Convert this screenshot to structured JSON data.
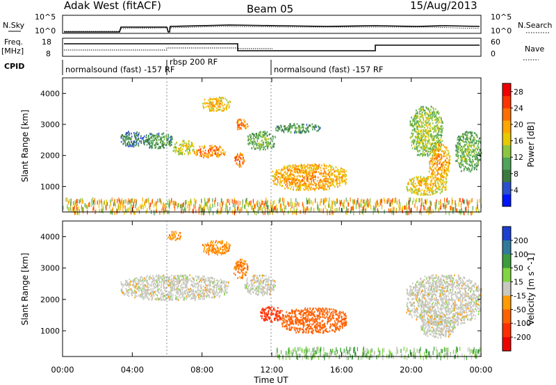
{
  "header": {
    "station": "Adak West (fitACF)",
    "beam": "Beam 05",
    "date": "15/Aug/2013"
  },
  "panels": {
    "nsky_label": "N.Sky",
    "nsearch_label": "N.Search",
    "freq_label": "Freq.",
    "freq_unit": "[MHz]",
    "nave_label": "Nave",
    "cpid_label": "CPID",
    "nsky_ticks": [
      "10^5",
      "10^0"
    ],
    "nsearch_ticks": [
      "10^5",
      "10^0"
    ],
    "freq_ticks": [
      "18",
      "8"
    ],
    "nave_ticks": [
      "60",
      "0"
    ],
    "cpid_segments": [
      {
        "start": 0,
        "end": 6,
        "label": "normalsound (fast) -157 RF"
      },
      {
        "start": 6,
        "end": 12,
        "label": "rbsp 200 RF"
      },
      {
        "start": 12,
        "end": 24,
        "label": "normalsound (fast) -157 RF"
      }
    ]
  },
  "chart_data": [
    {
      "type": "heatmap",
      "name": "Power",
      "ylabel": "Slant Range [km]",
      "xlim": [
        0,
        24
      ],
      "ylim": [
        180,
        4500
      ],
      "yticks": [
        "1000",
        "2000",
        "3000",
        "4000"
      ],
      "colorbar": {
        "label": "Power [dB]",
        "tick_values": [
          4,
          8,
          12,
          16,
          20,
          24,
          28
        ],
        "ticks": [
          "4",
          "8",
          "12",
          "16",
          "20",
          "24",
          "28"
        ],
        "range": [
          0,
          30
        ],
        "colors": [
          "#0015ff",
          "#2b4fcf",
          "#3a7a3e",
          "#4fa35a",
          "#8cc63f",
          "#e8c800",
          "#ffa500",
          "#ff6e00",
          "#ff3300",
          "#ee0000"
        ]
      },
      "features": [
        {
          "x": [
            3.3,
            4.6
          ],
          "y": [
            2300,
            2800
          ],
          "value": 8
        },
        {
          "x": [
            4.6,
            6.3
          ],
          "y": [
            2250,
            2750
          ],
          "value": 10
        },
        {
          "x": [
            6.3,
            7.5
          ],
          "y": [
            2050,
            2500
          ],
          "value": 16
        },
        {
          "x": [
            7.5,
            9.3
          ],
          "y": [
            1950,
            2350
          ],
          "value": 22
        },
        {
          "x": [
            8.0,
            9.6
          ],
          "y": [
            3450,
            3900
          ],
          "value": 18
        },
        {
          "x": [
            9.8,
            10.4
          ],
          "y": [
            1650,
            2100
          ],
          "value": 24
        },
        {
          "x": [
            9.9,
            10.6
          ],
          "y": [
            2850,
            3200
          ],
          "value": 22
        },
        {
          "x": [
            10.6,
            12.2
          ],
          "y": [
            2200,
            2800
          ],
          "value": 12
        },
        {
          "x": [
            12.2,
            14.8
          ],
          "y": [
            2750,
            3050
          ],
          "value": 10
        },
        {
          "x": [
            12.0,
            16.3
          ],
          "y": [
            900,
            1750
          ],
          "value": 20
        },
        {
          "x": [
            19.7,
            22.0
          ],
          "y": [
            750,
            1350
          ],
          "value": 18
        },
        {
          "x": [
            19.9,
            21.8
          ],
          "y": [
            2000,
            3600
          ],
          "value": 14
        },
        {
          "x": [
            21.0,
            22.2
          ],
          "y": [
            1200,
            2400
          ],
          "value": 20
        },
        {
          "x": [
            22.5,
            24.0
          ],
          "y": [
            1500,
            2800
          ],
          "value": 12
        },
        {
          "x": [
            0,
            24
          ],
          "y": [
            200,
            650
          ],
          "value": 18
        }
      ]
    },
    {
      "type": "heatmap",
      "name": "Velocity",
      "ylabel": "Slant Range [km]",
      "xlabel": "Time UT",
      "xlim": [
        0,
        24
      ],
      "ylim": [
        180,
        4500
      ],
      "xticks": [
        "00:00",
        "04:00",
        "08:00",
        "12:00",
        "16:00",
        "20:00",
        "00:00"
      ],
      "yticks": [
        "1000",
        "2000",
        "3000",
        "4000"
      ],
      "colorbar": {
        "label": "Velocity [m s^-1]",
        "tick_values": [
          200,
          100,
          50,
          15,
          -15,
          -50,
          -100,
          -200
        ],
        "ticks": [
          "200",
          "100",
          "50",
          "15",
          "-15",
          "-50",
          "-100",
          "-200"
        ],
        "colors": [
          "#1a3fd1",
          "#2e7a9c",
          "#3a9c3a",
          "#7fd640",
          "#c8c8c0",
          "#ff9a00",
          "#ff6000",
          "#ff2d00",
          "#ee0000"
        ]
      },
      "features": [
        {
          "x": [
            3.3,
            9.5
          ],
          "y": [
            2000,
            2800
          ],
          "value": 0
        },
        {
          "x": [
            8.0,
            9.6
          ],
          "y": [
            3450,
            3900
          ],
          "value": -40
        },
        {
          "x": [
            6.0,
            6.8
          ],
          "y": [
            3900,
            4200
          ],
          "value": -40
        },
        {
          "x": [
            9.8,
            10.6
          ],
          "y": [
            2700,
            3300
          ],
          "value": -50
        },
        {
          "x": [
            10.4,
            12.2
          ],
          "y": [
            2150,
            2800
          ],
          "value": 0
        },
        {
          "x": [
            11.3,
            12.6
          ],
          "y": [
            1300,
            1800
          ],
          "value": -150
        },
        {
          "x": [
            12.5,
            16.3
          ],
          "y": [
            950,
            1750
          ],
          "value": -70
        },
        {
          "x": [
            19.7,
            24.0
          ],
          "y": [
            1200,
            2800
          ],
          "value": 0
        },
        {
          "x": [
            20.5,
            22.5
          ],
          "y": [
            800,
            1500
          ],
          "value": 0
        },
        {
          "x": [
            12.0,
            24.0
          ],
          "y": [
            190,
            500
          ],
          "value": 40
        }
      ]
    }
  ]
}
